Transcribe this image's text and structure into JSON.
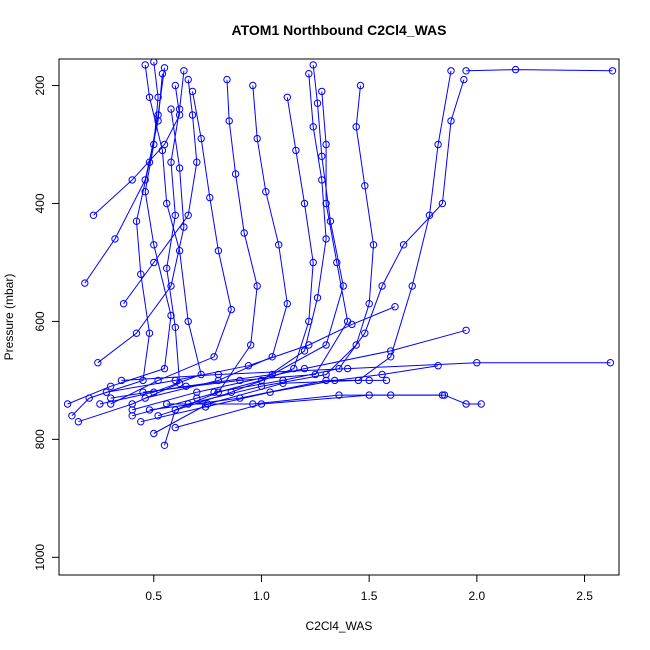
{
  "chart_data": {
    "type": "scatter",
    "title": "ATOM1 Northbound C2Cl4_WAS",
    "xlabel": "C2Cl4_WAS",
    "ylabel": "Pressure (mbar)",
    "xlim": [
      0.06,
      2.66
    ],
    "ylim": [
      1030,
      155
    ],
    "y_axis_reversed": true,
    "x_ticks": [
      0.5,
      1.0,
      1.5,
      2.0,
      2.5
    ],
    "x_tick_labels": [
      "0.5",
      "1.0",
      "1.5",
      "2.0",
      "2.5"
    ],
    "y_ticks": [
      200,
      400,
      600,
      800,
      1000
    ],
    "y_tick_labels": [
      "200",
      "400",
      "600",
      "800",
      "1000"
    ],
    "grid": false,
    "legend": "none",
    "marker": "open-circle",
    "series_color": "#0000ff",
    "note": "Profiles drawn as connected points (type 'o'); values estimated from the rendered figure.",
    "series": [
      {
        "points": [
          [
            0.12,
            760
          ],
          [
            0.2,
            730
          ],
          [
            0.45,
            700
          ],
          [
            0.48,
            620
          ],
          [
            0.44,
            520
          ],
          [
            0.42,
            430
          ],
          [
            0.48,
            330
          ],
          [
            0.52,
            250
          ],
          [
            0.55,
            170
          ]
        ]
      },
      {
        "points": [
          [
            0.1,
            740
          ],
          [
            0.3,
            710
          ],
          [
            0.55,
            680
          ],
          [
            0.58,
            590
          ],
          [
            0.5,
            470
          ],
          [
            0.46,
            380
          ],
          [
            0.5,
            300
          ],
          [
            0.52,
            220
          ],
          [
            0.5,
            160
          ]
        ]
      },
      {
        "points": [
          [
            0.15,
            770
          ],
          [
            0.4,
            740
          ],
          [
            0.62,
            705
          ],
          [
            0.6,
            610
          ],
          [
            0.56,
            510
          ],
          [
            0.6,
            420
          ],
          [
            0.58,
            330
          ],
          [
            0.62,
            240
          ],
          [
            0.64,
            175
          ]
        ]
      },
      {
        "points": [
          [
            0.25,
            740
          ],
          [
            0.5,
            720
          ],
          [
            0.72,
            690
          ],
          [
            0.66,
            600
          ],
          [
            0.62,
            480
          ],
          [
            0.56,
            400
          ],
          [
            0.54,
            310
          ],
          [
            0.48,
            220
          ],
          [
            0.46,
            165
          ]
        ]
      },
      {
        "points": [
          [
            0.4,
            760
          ],
          [
            0.7,
            730
          ],
          [
            1.0,
            700
          ],
          [
            1.2,
            650
          ],
          [
            1.26,
            560
          ],
          [
            1.3,
            460
          ],
          [
            1.28,
            360
          ],
          [
            1.24,
            270
          ],
          [
            1.22,
            180
          ]
        ]
      },
      {
        "points": [
          [
            0.3,
            730
          ],
          [
            0.65,
            710
          ],
          [
            1.05,
            690
          ],
          [
            1.3,
            640
          ],
          [
            1.38,
            540
          ],
          [
            1.32,
            430
          ],
          [
            1.28,
            320
          ],
          [
            1.26,
            230
          ],
          [
            1.24,
            165
          ]
        ]
      },
      {
        "points": [
          [
            0.45,
            720
          ],
          [
            0.9,
            700
          ],
          [
            1.25,
            690
          ],
          [
            1.4,
            600
          ],
          [
            1.35,
            500
          ],
          [
            1.3,
            400
          ],
          [
            1.3,
            300
          ],
          [
            1.28,
            210
          ]
        ]
      },
      {
        "points": [
          [
            0.55,
            810
          ],
          [
            0.6,
            750
          ],
          [
            0.8,
            720
          ],
          [
            0.95,
            640
          ],
          [
            0.98,
            540
          ],
          [
            0.92,
            450
          ],
          [
            0.88,
            350
          ],
          [
            0.85,
            260
          ],
          [
            0.84,
            190
          ]
        ]
      },
      {
        "points": [
          [
            0.5,
            790
          ],
          [
            0.75,
            740
          ],
          [
            1.1,
            705
          ],
          [
            1.45,
            700
          ],
          [
            1.6,
            660
          ],
          [
            1.7,
            540
          ],
          [
            1.78,
            420
          ],
          [
            1.82,
            300
          ],
          [
            1.88,
            175
          ]
        ]
      },
      {
        "points": [
          [
            0.6,
            780
          ],
          [
            1.0,
            740
          ],
          [
            1.5,
            725
          ],
          [
            1.85,
            725
          ],
          [
            1.95,
            740
          ],
          [
            2.02,
            740
          ]
        ]
      },
      {
        "points": [
          [
            0.35,
            700
          ],
          [
            0.8,
            690
          ],
          [
            1.4,
            680
          ],
          [
            2.0,
            670
          ],
          [
            2.62,
            670
          ]
        ]
      },
      {
        "points": [
          [
            0.4,
            750
          ],
          [
            0.7,
            720
          ],
          [
            1.2,
            680
          ],
          [
            1.6,
            650
          ],
          [
            1.95,
            615
          ]
        ]
      },
      {
        "points": [
          [
            1.95,
            175
          ],
          [
            2.18,
            173
          ],
          [
            2.63,
            175
          ]
        ]
      },
      {
        "points": [
          [
            0.22,
            420
          ],
          [
            0.4,
            360
          ],
          [
            0.55,
            300
          ],
          [
            0.62,
            250
          ],
          [
            0.6,
            200
          ]
        ]
      },
      {
        "points": [
          [
            0.18,
            535
          ],
          [
            0.32,
            460
          ],
          [
            0.46,
            360
          ],
          [
            0.52,
            260
          ],
          [
            0.54,
            180
          ]
        ]
      },
      {
        "points": [
          [
            0.36,
            570
          ],
          [
            0.5,
            500
          ],
          [
            0.66,
            420
          ],
          [
            0.7,
            330
          ],
          [
            0.68,
            250
          ],
          [
            0.66,
            190
          ]
        ]
      },
      {
        "points": [
          [
            0.24,
            670
          ],
          [
            0.42,
            620
          ],
          [
            0.58,
            540
          ],
          [
            0.64,
            440
          ],
          [
            0.62,
            340
          ],
          [
            0.58,
            240
          ]
        ]
      },
      {
        "points": [
          [
            0.3,
            740
          ],
          [
            0.52,
            700
          ],
          [
            0.78,
            660
          ],
          [
            0.86,
            580
          ],
          [
            0.8,
            480
          ],
          [
            0.76,
            390
          ],
          [
            0.72,
            290
          ],
          [
            0.68,
            210
          ]
        ]
      },
      {
        "points": [
          [
            0.46,
            730
          ],
          [
            0.8,
            700
          ],
          [
            1.05,
            660
          ],
          [
            1.12,
            570
          ],
          [
            1.08,
            470
          ],
          [
            1.02,
            380
          ],
          [
            0.98,
            290
          ],
          [
            0.96,
            200
          ]
        ]
      },
      {
        "points": [
          [
            0.52,
            760
          ],
          [
            0.86,
            720
          ],
          [
            1.15,
            680
          ],
          [
            1.22,
            600
          ],
          [
            1.24,
            500
          ],
          [
            1.2,
            400
          ],
          [
            1.16,
            310
          ],
          [
            1.12,
            220
          ]
        ]
      },
      {
        "points": [
          [
            0.66,
            740
          ],
          [
            1.0,
            710
          ],
          [
            1.3,
            690
          ],
          [
            1.44,
            640
          ],
          [
            1.5,
            570
          ],
          [
            1.52,
            470
          ],
          [
            1.48,
            370
          ],
          [
            1.44,
            270
          ],
          [
            1.46,
            200
          ]
        ]
      },
      {
        "points": [
          [
            0.78,
            720
          ],
          [
            1.1,
            700
          ],
          [
            1.36,
            680
          ],
          [
            1.48,
            620
          ],
          [
            1.56,
            540
          ],
          [
            1.66,
            470
          ],
          [
            1.84,
            400
          ],
          [
            1.88,
            260
          ],
          [
            1.94,
            190
          ]
        ]
      },
      {
        "points": [
          [
            0.48,
            750
          ],
          [
            0.9,
            730
          ],
          [
            1.3,
            700
          ],
          [
            1.5,
            700
          ],
          [
            1.58,
            700
          ]
        ]
      },
      {
        "points": [
          [
            0.56,
            740
          ],
          [
            0.96,
            740
          ],
          [
            1.36,
            725
          ],
          [
            1.6,
            725
          ],
          [
            1.84,
            725
          ]
        ]
      },
      {
        "points": [
          [
            0.28,
            720
          ],
          [
            0.6,
            700
          ],
          [
            0.94,
            675
          ],
          [
            1.22,
            640
          ],
          [
            1.42,
            605
          ],
          [
            1.62,
            575
          ]
        ]
      },
      {
        "points": [
          [
            0.44,
            770
          ],
          [
            0.74,
            745
          ],
          [
            1.04,
            720
          ],
          [
            1.34,
            700
          ],
          [
            1.56,
            690
          ],
          [
            1.82,
            675
          ]
        ]
      }
    ]
  }
}
